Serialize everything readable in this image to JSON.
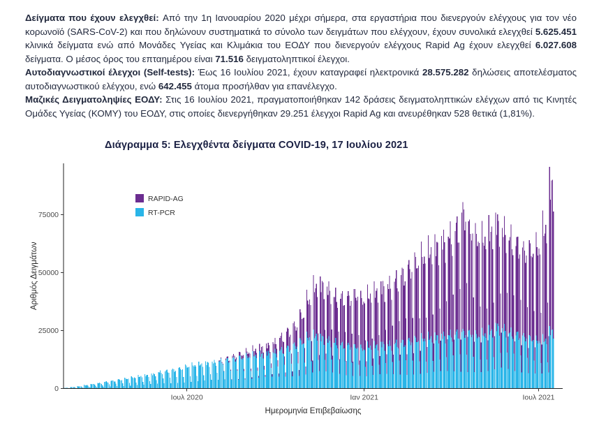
{
  "report": {
    "paragraphs": [
      {
        "segments": [
          {
            "text": "Δείγματα που έχουν ελεγχθεί:  ",
            "bold": true
          },
          {
            "text": "Από την 1η Ιανουαρίου 2020 μέχρι σήμερα, στα εργαστήρια που διενεργούν ελέγχους για τον νέο κορωνοϊό (SARS-CoV-2) και που δηλώνουν συστηματικά το σύνολο των δειγμάτων που ελέγχουν, έχουν συνολικά ελεγχθεί ",
            "bold": false
          },
          {
            "text": "5.625.451",
            "bold": true
          },
          {
            "text": " κλινικά δείγματα ενώ από Μονάδες Υγείας και Κλιμάκια του ΕΟΔΥ που διενεργούν ελέγχους Rapid Ag έχουν ελεγχθεί ",
            "bold": false
          },
          {
            "text": "6.027.608",
            "bold": true
          },
          {
            "text": " δείγματα.  Ο μέσος όρος του επταημέρου είναι ",
            "bold": false
          },
          {
            "text": "71.516",
            "bold": true
          },
          {
            "text": " δειγματοληπτικοί έλεγχοι.",
            "bold": false
          }
        ]
      },
      {
        "segments": [
          {
            "text": "Αυτοδιαγνωστικοί έλεγχοι (Self-tests): ",
            "bold": true
          },
          {
            "text": "Έως 16 Ιουλίου 2021, έχουν καταγραφεί ηλεκτρονικά ",
            "bold": false
          },
          {
            "text": "28.575.282",
            "bold": true
          },
          {
            "text": " δηλώσεις αποτελέσματος αυτοδιαγνωστικού ελέγχου, ενώ ",
            "bold": false
          },
          {
            "text": "642.455",
            "bold": true
          },
          {
            "text": " άτομα προσήλθαν για επανέλεγχο.",
            "bold": false
          }
        ]
      },
      {
        "segments": [
          {
            "text": "Μαζικές Δειγματοληψίες ΕΟΔΥ: ",
            "bold": true
          },
          {
            "text": "Στις 16 Ιουλίου 2021, πραγματοποιήθηκαν 142 δράσεις δειγματοληπτικών ελέγχων από τις Κινητές Ομάδες Υγείας (ΚΟΜΥ) του ΕΟΔΥ, στις οποίες διενεργήθηκαν 29.251 έλεγχοι Rapid Ag και ανευρέθηκαν 528 θετικά (1,81%).",
            "bold": false
          }
        ]
      }
    ]
  },
  "figure": {
    "title": "Διάγραμμα 5: Ελεγχθέντα δείγματα COVID-19, 17 Ιουλίου 2021"
  },
  "chart_data": {
    "type": "bar",
    "stacked": true,
    "title": "Διάγραμμα 5: Ελεγχθέντα δείγματα COVID-19, 17 Ιουλίου 2021",
    "xlabel": "Ημερομηνία Επιβεβαίωσης",
    "ylabel": "Αριθμός Δειγμάτων",
    "ylim": [
      0,
      95000
    ],
    "y_ticks": [
      0,
      25000,
      50000,
      75000
    ],
    "x_ticks": [
      {
        "label": "Ιουλ 2020",
        "day": 128
      },
      {
        "label": "Ιαν 2021",
        "day": 312
      },
      {
        "label": "Ιουλ 2021",
        "day": 493
      }
    ],
    "legend_position": "inside-top-left",
    "grid": false,
    "legend": [
      {
        "name": "RAPID-AG",
        "color": "#6b2d90"
      },
      {
        "name": "RT-PCR",
        "color": "#29b5e8"
      }
    ],
    "start_date": "2020-02-24",
    "total_days": 509,
    "frequency": "daily bars, approximated as weekly peak values modulated by a weekday profile",
    "weekday_profile": [
      1.0,
      0.95,
      0.97,
      0.92,
      0.87,
      0.55,
      0.3
    ],
    "series": [
      {
        "name": "RT-PCR",
        "weekly_peak_thousands": [
          0.3,
          0.6,
          1.0,
          1.5,
          2.0,
          2.5,
          3.0,
          3.5,
          4.0,
          4.5,
          5.0,
          5.5,
          6.0,
          6.5,
          7.5,
          8.0,
          8.5,
          9.0,
          10.0,
          10.5,
          11.0,
          11.5,
          12.0,
          12.5,
          13.0,
          13.5,
          14.0,
          14.5,
          15.0,
          15.5,
          16.0,
          16.5,
          17.5,
          18.5,
          19.5,
          21.0,
          23.0,
          24.0,
          23.0,
          22.0,
          21.0,
          20.0,
          19.5,
          19.0,
          18.0,
          19.0,
          19.5,
          20.0,
          20.0,
          20.5,
          21.0,
          21.5,
          22.0,
          22.5,
          23.0,
          23.5,
          24.0,
          24.5,
          25.0,
          25.5,
          25.0,
          24.0,
          24.5,
          26.0,
          28.0,
          27.0,
          25.5,
          24.5,
          23.5,
          22.5,
          21.5,
          22.0,
          26.0,
          26.0
        ]
      },
      {
        "name": "RAPID-AG",
        "weekly_peak_thousands": [
          0,
          0,
          0,
          0,
          0,
          0,
          0,
          0,
          0,
          0,
          0,
          0,
          0,
          0,
          0,
          0,
          0,
          0,
          0,
          0,
          0,
          0,
          0,
          0.4,
          0.8,
          1.2,
          1.6,
          2.0,
          2.5,
          3.0,
          3.5,
          4.5,
          6.0,
          7.5,
          9.0,
          12.0,
          17.0,
          22.0,
          24.0,
          23.0,
          21.0,
          21.5,
          22.0,
          23.5,
          22.0,
          23.0,
          24.5,
          26.0,
          27.0,
          29.0,
          31.0,
          33.0,
          35.0,
          37.0,
          39.0,
          41.0,
          43.0,
          45.0,
          48.0,
          54.0,
          47.0,
          44.0,
          43.0,
          45.0,
          47.0,
          45.0,
          43.0,
          41.0,
          39.0,
          40.0,
          42.0,
          50.0,
          66.0,
          68.0
        ]
      }
    ],
    "render": {
      "jitter": 0.07
    }
  }
}
